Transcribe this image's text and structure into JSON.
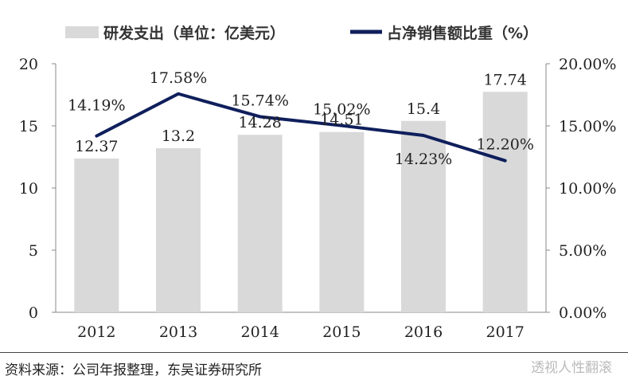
{
  "chart_data": {
    "type": "bar",
    "categories": [
      "2012",
      "2013",
      "2014",
      "2015",
      "2016",
      "2017"
    ],
    "series": [
      {
        "name": "研发支出（单位：亿美元）",
        "type": "bar",
        "axis": "left",
        "values": [
          12.37,
          13.2,
          14.28,
          14.51,
          15.4,
          17.74
        ],
        "labels": [
          "12.37",
          "13.2",
          "14.28",
          "14.51",
          "15.4",
          "17.74"
        ],
        "color": "#d9d9d9"
      },
      {
        "name": "占净销售额比重（%）",
        "type": "line",
        "axis": "right",
        "values": [
          14.19,
          17.58,
          15.74,
          15.02,
          14.23,
          12.2
        ],
        "labels": [
          "14.19%",
          "17.58%",
          "15.74%",
          "15.02%",
          "14.23%",
          "12.20%"
        ],
        "color": "#0f1f5c"
      }
    ],
    "y_left": {
      "lim": [
        0,
        20
      ],
      "ticks": [
        "0",
        "5",
        "10",
        "15",
        "20"
      ]
    },
    "y_right": {
      "lim": [
        0,
        20
      ],
      "ticks": [
        "0.00%",
        "5.00%",
        "10.00%",
        "15.00%",
        "20.00%"
      ]
    },
    "legend_position": "top",
    "grid": false
  },
  "footer": {
    "source": "资料来源：公司年报整理，东吴证券研究所",
    "watermark": "透视人性翻滚"
  }
}
